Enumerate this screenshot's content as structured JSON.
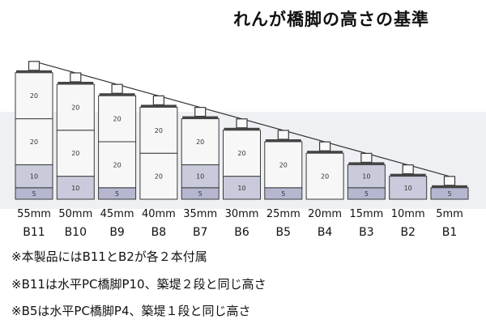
{
  "title": "れんが橋脚の高さの基準",
  "colors": {
    "block_fill": "#f7f7f7",
    "block_shade": "#c9cbdc",
    "base_shade": "#b4b7cf",
    "outline": "#3a3a3a",
    "pale_band": "#e9ecf2"
  },
  "segment_labels": {
    "s5": "5",
    "s10": "10",
    "s20": "20"
  },
  "piers": [
    {
      "height": "55mm",
      "code": "B11",
      "mm": 55,
      "segs": [
        "5",
        "10",
        "20",
        "20"
      ]
    },
    {
      "height": "50mm",
      "code": "B10",
      "mm": 50,
      "segs": [
        "10",
        "20",
        "20"
      ]
    },
    {
      "height": "45mm",
      "code": "B9",
      "mm": 45,
      "segs": [
        "5",
        "20",
        "20"
      ]
    },
    {
      "height": "40mm",
      "code": "B8",
      "mm": 40,
      "segs": [
        "20",
        "20"
      ]
    },
    {
      "height": "35mm",
      "code": "B7",
      "mm": 35,
      "segs": [
        "5",
        "10",
        "20"
      ]
    },
    {
      "height": "30mm",
      "code": "B6",
      "mm": 30,
      "segs": [
        "10",
        "20"
      ]
    },
    {
      "height": "25mm",
      "code": "B5",
      "mm": 25,
      "segs": [
        "5",
        "20"
      ]
    },
    {
      "height": "20mm",
      "code": "B4",
      "mm": 20,
      "segs": [
        "20"
      ]
    },
    {
      "height": "15mm",
      "code": "B3",
      "mm": 15,
      "segs": [
        "5",
        "10"
      ]
    },
    {
      "height": "10mm",
      "code": "B2",
      "mm": 10,
      "segs": [
        "10"
      ]
    },
    {
      "height": "5mm",
      "code": "B1",
      "mm": 5,
      "segs": [
        "5"
      ]
    }
  ],
  "notes": [
    "※本製品にはB11とB2が各２本付属",
    "※B11は水平PC橋脚P10、築堤２段と同じ高さ",
    "※B5は水平PC橋脚P4、築堤１段と同じ高さ"
  ]
}
